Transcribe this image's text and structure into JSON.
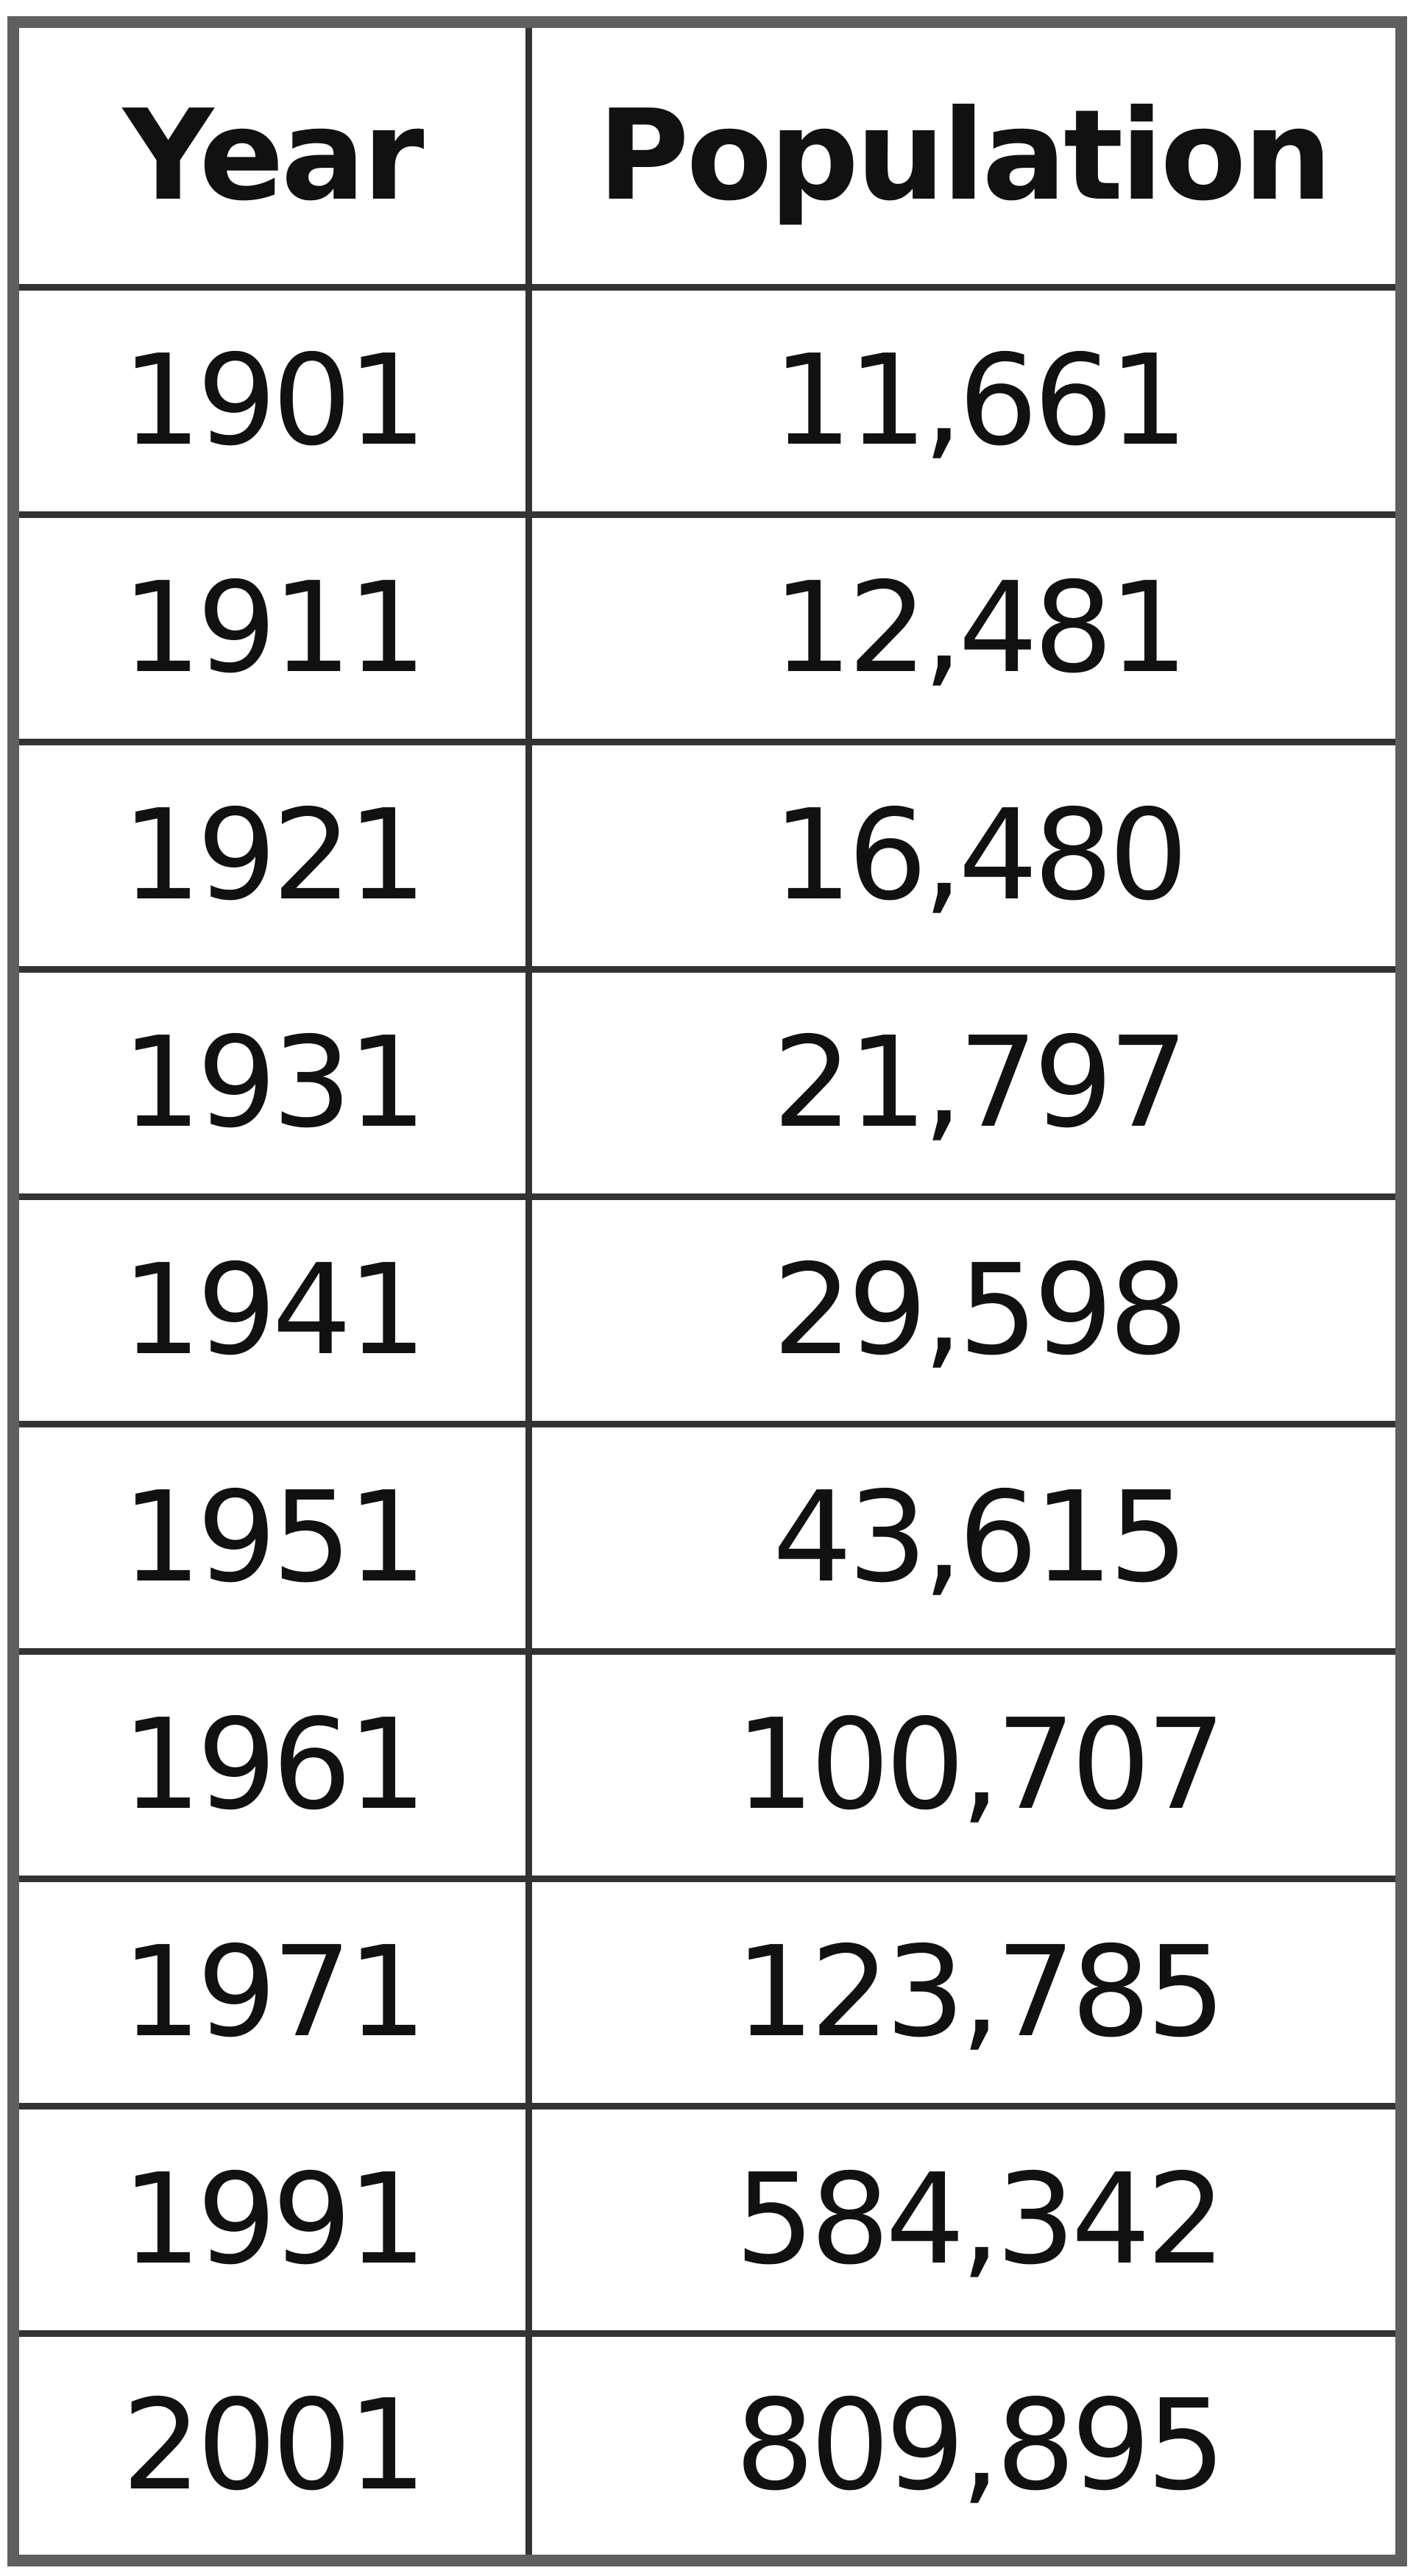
{
  "chart_data": {
    "type": "table",
    "columns": [
      "Year",
      "Population"
    ],
    "rows": [
      [
        "1901",
        "11,661"
      ],
      [
        "1911",
        "12,481"
      ],
      [
        "1921",
        "16,480"
      ],
      [
        "1931",
        "21,797"
      ],
      [
        "1941",
        "29,598"
      ],
      [
        "1951",
        "43,615"
      ],
      [
        "1961",
        "100,707"
      ],
      [
        "1971",
        "123,785"
      ],
      [
        "1991",
        "584,342"
      ],
      [
        "2001",
        "809,895"
      ]
    ]
  }
}
